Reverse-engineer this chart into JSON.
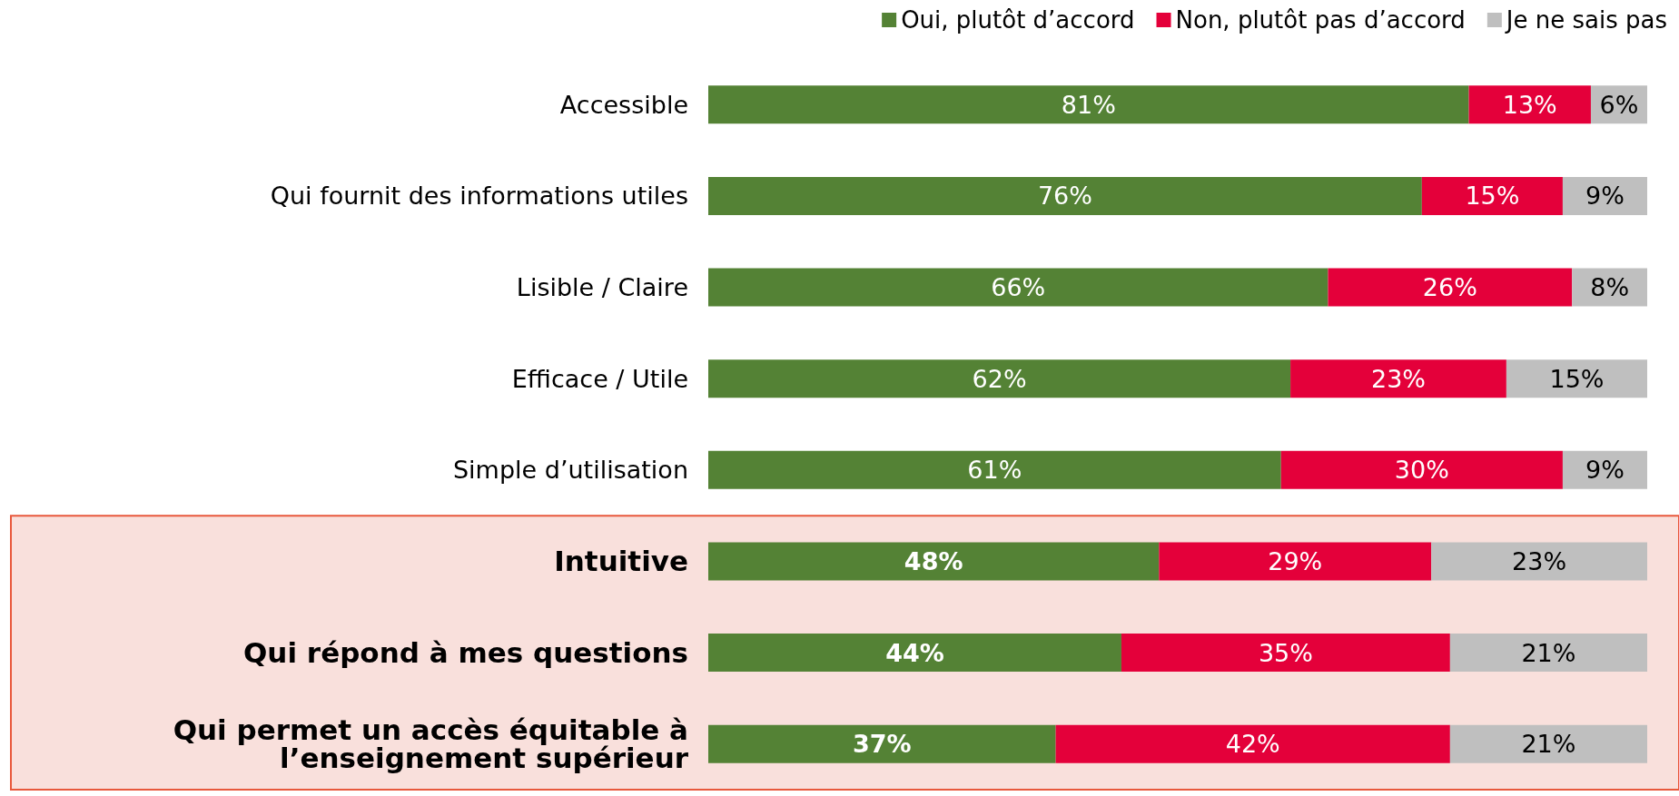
{
  "chart_data": {
    "type": "bar",
    "orientation": "horizontal",
    "stacked": true,
    "categories": [
      "Accessible",
      "Qui fournit des informations utiles",
      "Lisible / Claire",
      "Efficace / Utile",
      "Simple d’utilisation",
      "Intuitive",
      "Qui répond à mes questions",
      "Qui permet un accès équitable à l’enseignement supérieur"
    ],
    "series": [
      {
        "name": "Oui, plutôt d’accord",
        "color": "#548235",
        "values": [
          81,
          76,
          66,
          62,
          61,
          48,
          44,
          37
        ],
        "value_labels": [
          "81%",
          "76%",
          "66%",
          "62%",
          "61%",
          "48%",
          "44%",
          "37%"
        ]
      },
      {
        "name": "Non, plutôt pas d’accord",
        "color": "#e4003a",
        "values": [
          13,
          15,
          26,
          23,
          30,
          29,
          35,
          42
        ],
        "value_labels": [
          "13%",
          "15%",
          "26%",
          "23%",
          "30%",
          "29%",
          "35%",
          "42%"
        ]
      },
      {
        "name": "Je ne sais pas",
        "color": "#bfbfbf",
        "values": [
          6,
          9,
          8,
          15,
          9,
          23,
          21,
          21
        ],
        "value_labels": [
          "6%",
          "9%",
          "8%",
          "15%",
          "9%",
          "23%",
          "21%",
          "21%"
        ]
      }
    ],
    "xlim": [
      0,
      100
    ],
    "bands": [
      {
        "axis": "y",
        "from": "Intuitive",
        "to": "Qui permet un accès équitable à l’enseignement supérieur",
        "color": "#f9e0dc"
      }
    ],
    "legend": "top right"
  }
}
